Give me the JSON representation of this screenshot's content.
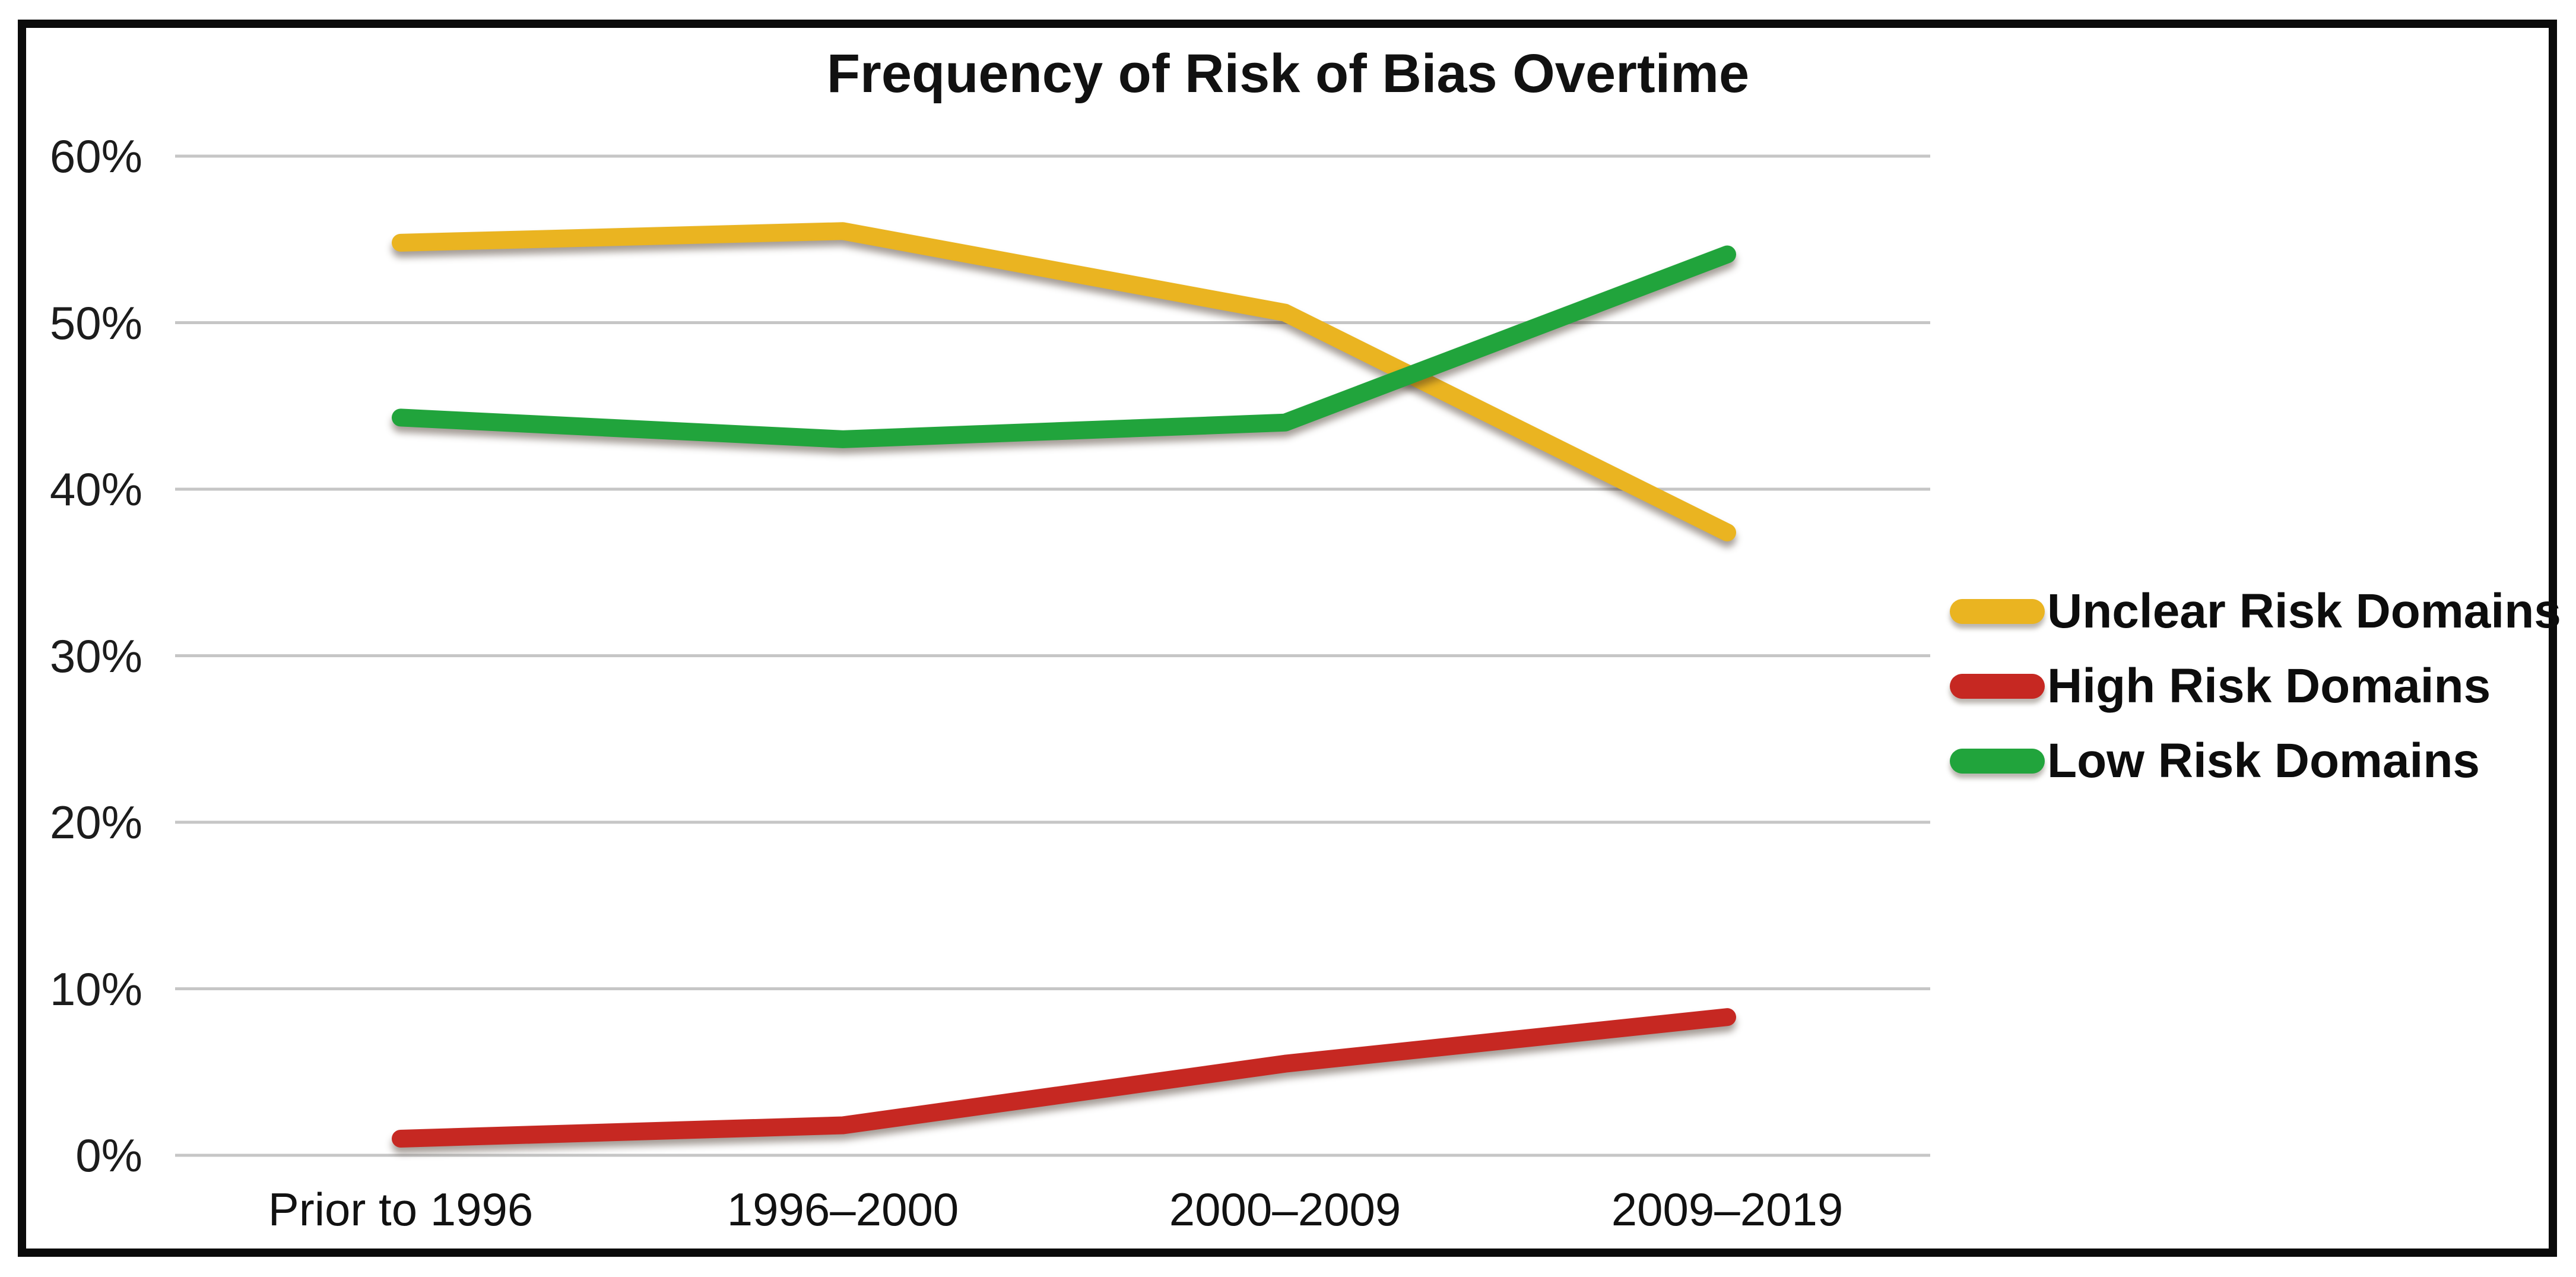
{
  "figure": {
    "title": "Frequency of Risk of Bias Overtime"
  },
  "chart_data": {
    "type": "line",
    "title": "Frequency of Risk of Bias Overtime",
    "categories": [
      "Prior to 1996",
      "1996–2000",
      "2000–2009",
      "2009–2019"
    ],
    "series": [
      {
        "name": "Unclear Risk Domains",
        "color": "#EAB421",
        "values": [
          54.8,
          55.5,
          50.6,
          37.4
        ]
      },
      {
        "name": "High Risk Domains",
        "color": "#C62822",
        "values": [
          1.0,
          1.8,
          5.5,
          8.3
        ]
      },
      {
        "name": "Low Risk Domains",
        "color": "#21A43C",
        "values": [
          44.3,
          43.0,
          44.0,
          54.1
        ]
      }
    ],
    "yticks": [
      "60%",
      "50%",
      "40%",
      "30%",
      "20%",
      "10%",
      "0%"
    ],
    "ylim": [
      0,
      62
    ],
    "xlabel": "",
    "ylabel": "",
    "grid": true,
    "gridline_color": "#c6c6c6",
    "legend_position": "right",
    "background": "#ffffff",
    "frame_color": "#0b0b0b",
    "text_color": "#111111"
  }
}
